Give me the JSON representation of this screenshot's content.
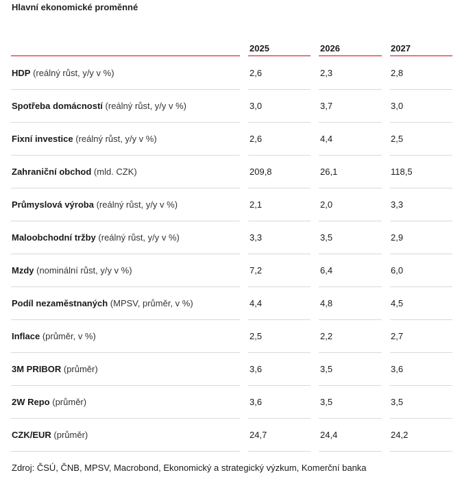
{
  "title": "Hlavní ekonomické proměnné",
  "columns": [
    "2025",
    "2026",
    "2027"
  ],
  "rows": [
    {
      "label": "HDP",
      "unit": "(reálný růst, y/y v %)",
      "values": [
        "2,6",
        "2,3",
        "2,8"
      ]
    },
    {
      "label": "Spotřeba domácností",
      "unit": "(reálný růst, y/y v %)",
      "values": [
        "3,0",
        "3,7",
        "3,0"
      ]
    },
    {
      "label": "Fixní investice",
      "unit": "(reálný růst, y/y v %)",
      "values": [
        "2,6",
        "4,4",
        "2,5"
      ]
    },
    {
      "label": "Zahraniční obchod",
      "unit": "(mld. CZK)",
      "values": [
        "209,8",
        "26,1",
        "118,5"
      ]
    },
    {
      "label": "Průmyslová výroba",
      "unit": "(reálný růst, y/y v %)",
      "values": [
        "2,1",
        "2,0",
        "3,3"
      ]
    },
    {
      "label": "Maloobchodní tržby",
      "unit": "(reálný růst, y/y v %)",
      "values": [
        "3,3",
        "3,5",
        "2,9"
      ]
    },
    {
      "label": "Mzdy",
      "unit": "(nominální růst, y/y v %)",
      "values": [
        "7,2",
        "6,4",
        "6,0"
      ]
    },
    {
      "label": "Podíl nezaměstnaných",
      "unit": "(MPSV, průměr, v %)",
      "values": [
        "4,4",
        "4,8",
        "4,5"
      ]
    },
    {
      "label": "Inflace",
      "unit": "(průměr, v %)",
      "values": [
        "2,5",
        "2,2",
        "2,7"
      ]
    },
    {
      "label": "3M PRIBOR",
      "unit": "(průměr)",
      "values": [
        "3,6",
        "3,5",
        "3,6"
      ]
    },
    {
      "label": "2W Repo",
      "unit": "(průměr)",
      "values": [
        "3,6",
        "3,5",
        "3,5"
      ]
    },
    {
      "label": "CZK/EUR",
      "unit": "(průměr)",
      "values": [
        "24,7",
        "24,4",
        "24,2"
      ]
    }
  ],
  "source": "Zdroj: ČSÚ, ČNB, MPSV, Macrobond, Ekonomický a strategický výzkum, Komerční banka",
  "colors": {
    "accent_line": "#d0021b",
    "separator": "#d9d9d9"
  }
}
